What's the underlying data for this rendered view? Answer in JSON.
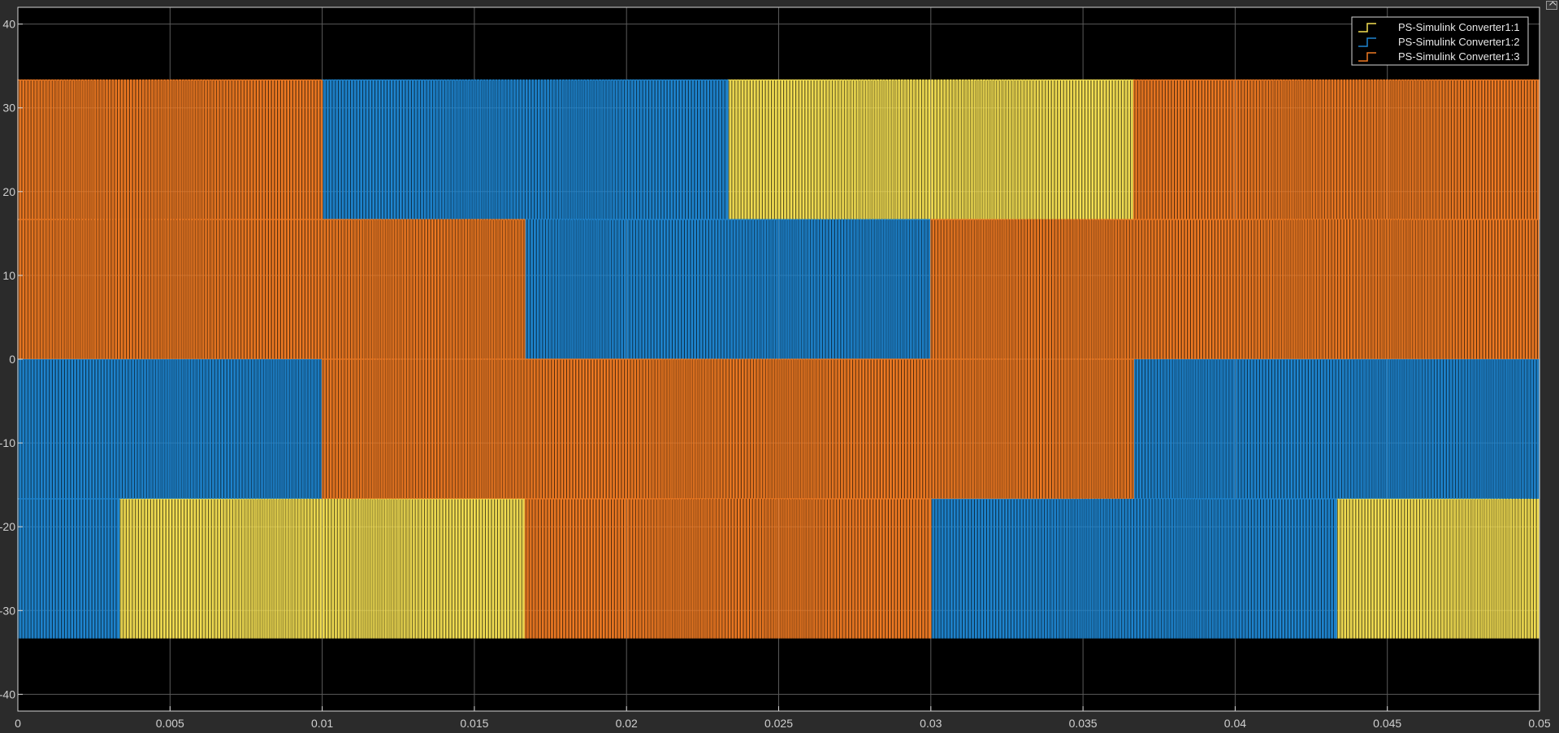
{
  "colors": {
    "background": "#000000",
    "frame": "#2b2b2b",
    "axis": "#d6d6d6",
    "grid": "#5a5a5a",
    "series": [
      "#f4df53",
      "#1f86d1",
      "#ef7a23"
    ]
  },
  "chart_data": {
    "type": "line",
    "title": "",
    "xlabel": "",
    "ylabel": "",
    "xlim": [
      0,
      0.05
    ],
    "ylim": [
      -42,
      42
    ],
    "grid": true,
    "legend_position": "top-right",
    "line_style": "stairs",
    "xticks": [
      0,
      0.005,
      0.01,
      0.015,
      0.02,
      0.025,
      0.03,
      0.035,
      0.04,
      0.045,
      0.05
    ],
    "xtick_labels": [
      "0",
      "0.005",
      "0.01",
      "0.015",
      "0.02",
      "0.025",
      "0.03",
      "0.035",
      "0.04",
      "0.045",
      "0.05"
    ],
    "yticks": [
      -40,
      -30,
      -20,
      -10,
      0,
      10,
      20,
      30,
      40
    ],
    "ytick_labels": [
      "-40",
      "-30",
      "-20",
      "-10",
      "0",
      "10",
      "20",
      "30",
      "40"
    ],
    "switching_frequency_hz": 10000,
    "bands": [
      {
        "name": "upper",
        "y_range": [
          16.67,
          33.33
        ]
      },
      {
        "name": "upper-middle",
        "y_range": [
          0,
          16.67
        ]
      },
      {
        "name": "lower-middle",
        "y_range": [
          -16.67,
          0
        ]
      },
      {
        "name": "lower",
        "y_range": [
          -33.33,
          -16.67
        ]
      }
    ],
    "series": [
      {
        "name": "PS-Simulink Converter1:1",
        "color": "#f4df53",
        "segments": [
          {
            "band": "lower",
            "x_range": [
              0.00333,
              0.01667
            ]
          },
          {
            "band": "upper",
            "x_range": [
              0.02333,
              0.03667
            ]
          },
          {
            "band": "lower",
            "x_range": [
              0.04333,
              0.05
            ]
          }
        ]
      },
      {
        "name": "PS-Simulink Converter1:2",
        "color": "#1f86d1",
        "segments": [
          {
            "band": "lower",
            "x_range": [
              0,
              0.00333
            ]
          },
          {
            "band": "lower-middle",
            "x_range": [
              0,
              0.01
            ]
          },
          {
            "band": "upper",
            "x_range": [
              0.01,
              0.02333
            ]
          },
          {
            "band": "upper-middle",
            "x_range": [
              0.01667,
              0.03
            ]
          },
          {
            "band": "lower",
            "x_range": [
              0.03,
              0.04333
            ]
          },
          {
            "band": "lower-middle",
            "x_range": [
              0.03667,
              0.05
            ]
          }
        ]
      },
      {
        "name": "PS-Simulink Converter1:3",
        "color": "#ef7a23",
        "segments": [
          {
            "band": "upper",
            "x_range": [
              0,
              0.01
            ]
          },
          {
            "band": "upper-middle",
            "x_range": [
              0,
              0.01667
            ]
          },
          {
            "band": "lower-middle",
            "x_range": [
              0.01,
              0.03667
            ]
          },
          {
            "band": "lower",
            "x_range": [
              0.01667,
              0.03
            ]
          },
          {
            "band": "upper-middle",
            "x_range": [
              0.03,
              0.05
            ]
          },
          {
            "band": "upper",
            "x_range": [
              0.03667,
              0.05
            ]
          }
        ]
      }
    ]
  }
}
